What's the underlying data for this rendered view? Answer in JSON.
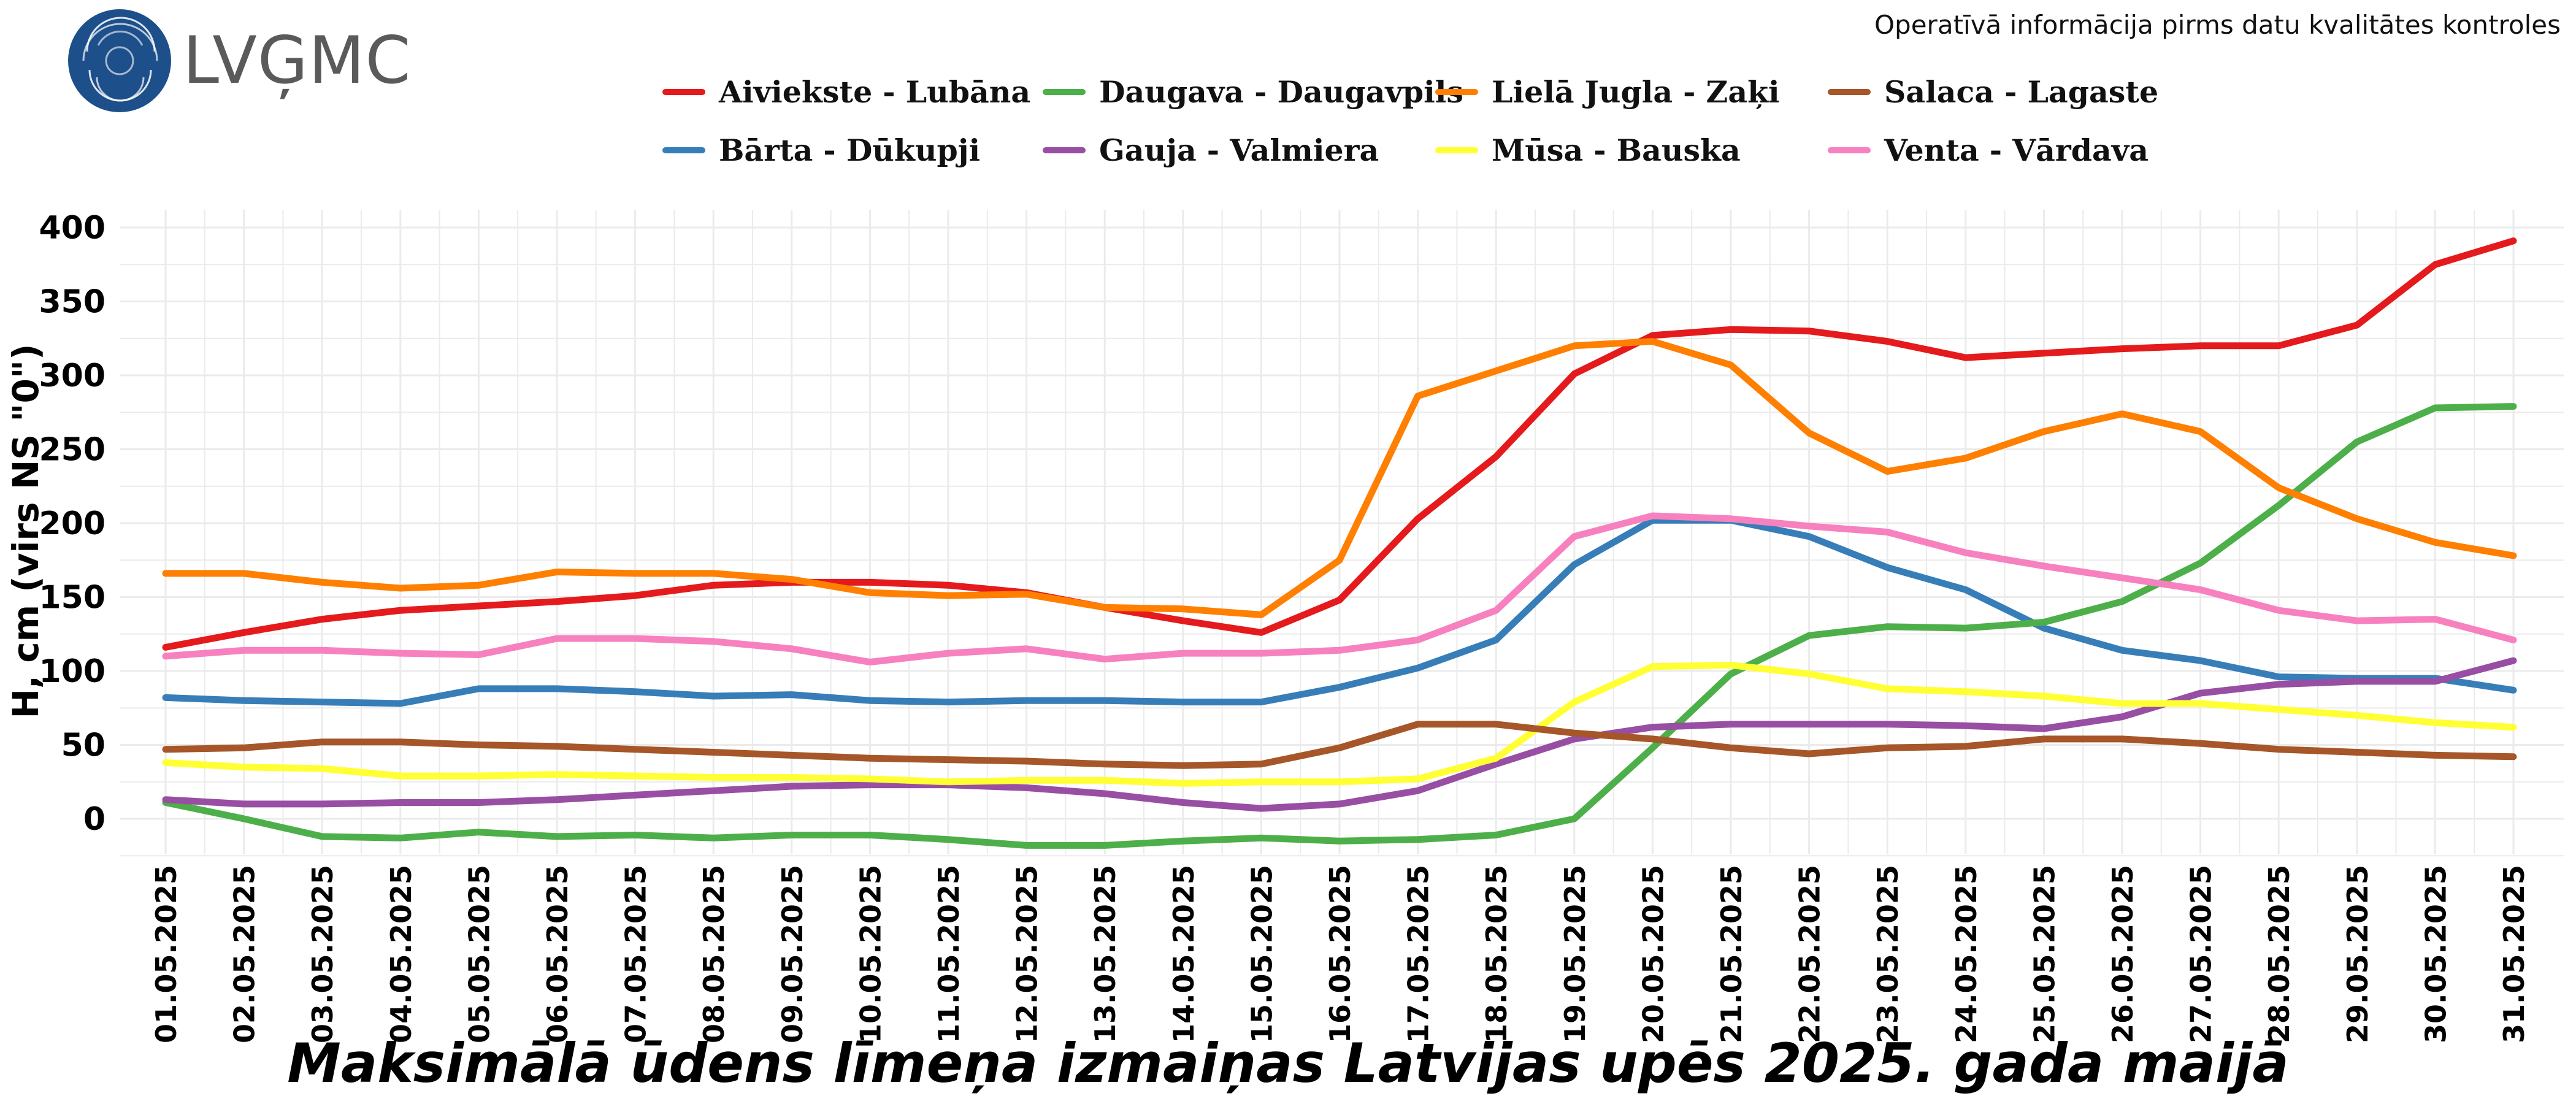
{
  "header": {
    "logo_text": "LVĢMC",
    "disclaimer": "Operatīvā informācija pirms datu kvalitātes kontroles"
  },
  "colors": {
    "grid": "#ebebeb",
    "logo_blue": "#1d4f8a"
  },
  "chart_data": {
    "type": "line",
    "title": "Maksimālā ūdens līmeņa izmaiņas Latvijas upēs 2025. gada maijā",
    "xlabel": "",
    "ylabel": "H, cm (virs NS \"0\")",
    "ylim": [
      -25,
      410
    ],
    "yticks": [
      0,
      50,
      100,
      150,
      200,
      250,
      300,
      350,
      400
    ],
    "grid": true,
    "legend_position": "top-center",
    "categories": [
      "01.05.2025",
      "02.05.2025",
      "03.05.2025",
      "04.05.2025",
      "05.05.2025",
      "06.05.2025",
      "07.05.2025",
      "08.05.2025",
      "09.05.2025",
      "10.05.2025",
      "11.05.2025",
      "12.05.2025",
      "13.05.2025",
      "14.05.2025",
      "15.05.2025",
      "16.05.2025",
      "17.05.2025",
      "18.05.2025",
      "19.05.2025",
      "20.05.2025",
      "21.05.2025",
      "22.05.2025",
      "23.05.2025",
      "24.05.2025",
      "25.05.2025",
      "26.05.2025",
      "27.05.2025",
      "28.05.2025",
      "29.05.2025",
      "30.05.2025",
      "31.05.2025"
    ],
    "series": [
      {
        "name": "Aiviekste - Lubāna",
        "color": "#e41a1c",
        "values": [
          116,
          126,
          135,
          141,
          144,
          147,
          151,
          158,
          160,
          160,
          158,
          153,
          143,
          134,
          126,
          148,
          203,
          245,
          301,
          327,
          331,
          330,
          323,
          312,
          315,
          318,
          320,
          320,
          334,
          375,
          391
        ]
      },
      {
        "name": "Bārta - Dūkupji",
        "color": "#377eb8",
        "values": [
          82,
          80,
          79,
          78,
          88,
          88,
          86,
          83,
          84,
          80,
          79,
          80,
          80,
          79,
          79,
          89,
          102,
          121,
          172,
          202,
          202,
          191,
          170,
          155,
          129,
          114,
          107,
          96,
          95,
          95,
          87
        ]
      },
      {
        "name": "Daugava - Daugavpils",
        "color": "#4daf4a",
        "values": [
          11,
          0,
          -12,
          -13,
          -9,
          -12,
          -11,
          -13,
          -11,
          -11,
          -14,
          -18,
          -18,
          -15,
          -13,
          -15,
          -14,
          -11,
          0,
          48,
          98,
          124,
          130,
          129,
          133,
          147,
          173,
          212,
          255,
          278,
          279
        ]
      },
      {
        "name": "Gauja - Valmiera",
        "color": "#984ea3",
        "values": [
          13,
          10,
          10,
          11,
          11,
          13,
          16,
          19,
          22,
          23,
          23,
          21,
          17,
          11,
          7,
          10,
          19,
          37,
          54,
          62,
          64,
          64,
          64,
          63,
          61,
          69,
          85,
          91,
          93,
          93,
          107
        ]
      },
      {
        "name": "Lielā Jugla - Zaķi",
        "color": "#ff7f00",
        "values": [
          166,
          166,
          160,
          156,
          158,
          167,
          166,
          166,
          162,
          153,
          151,
          152,
          143,
          142,
          138,
          175,
          286,
          303,
          320,
          323,
          307,
          261,
          235,
          244,
          262,
          274,
          262,
          224,
          203,
          187,
          178
        ]
      },
      {
        "name": "Mūsa - Bauska",
        "color": "#ffff33",
        "values": [
          38,
          35,
          34,
          29,
          29,
          30,
          29,
          28,
          28,
          27,
          25,
          26,
          26,
          24,
          25,
          25,
          27,
          41,
          79,
          103,
          104,
          98,
          88,
          86,
          83,
          78,
          78,
          74,
          70,
          65,
          62
        ]
      },
      {
        "name": "Salaca - Lagaste",
        "color": "#a65628",
        "values": [
          47,
          48,
          52,
          52,
          50,
          49,
          47,
          45,
          43,
          41,
          40,
          39,
          37,
          36,
          37,
          48,
          64,
          64,
          58,
          54,
          48,
          44,
          48,
          49,
          54,
          54,
          51,
          47,
          45,
          43,
          42
        ]
      },
      {
        "name": "Venta - Vārdava",
        "color": "#f781bf",
        "values": [
          110,
          114,
          114,
          112,
          111,
          122,
          122,
          120,
          115,
          106,
          112,
          115,
          108,
          112,
          112,
          114,
          121,
          141,
          191,
          205,
          203,
          198,
          194,
          180,
          171,
          163,
          155,
          141,
          134,
          135,
          121
        ]
      }
    ]
  }
}
